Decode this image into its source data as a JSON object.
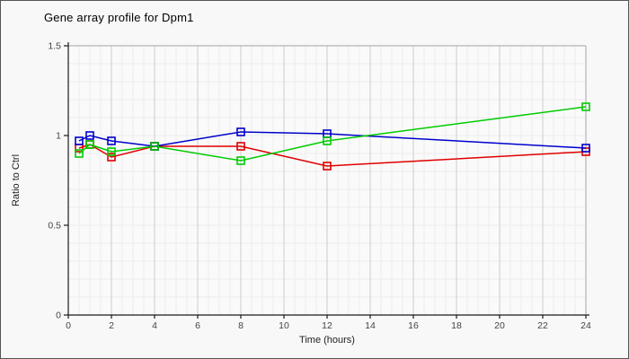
{
  "window": {
    "background": "#f8f8f8",
    "border_color": "#555555"
  },
  "chart_data": {
    "type": "line",
    "title": "Gene array profile for Dpm1",
    "xlabel": "Time (hours)",
    "ylabel": "Ratio to Ctrl",
    "x": [
      0.5,
      1,
      2,
      4,
      8,
      12,
      24
    ],
    "series": [
      {
        "name": "red",
        "color": "#e00000",
        "values": [
          0.93,
          0.95,
          0.88,
          0.94,
          0.94,
          0.83,
          0.91
        ]
      },
      {
        "name": "blue",
        "color": "#0000cc",
        "values": [
          0.97,
          1.0,
          0.97,
          0.94,
          1.02,
          1.01,
          0.93
        ]
      },
      {
        "name": "green",
        "color": "#00cc00",
        "values": [
          0.9,
          0.95,
          0.91,
          0.94,
          0.86,
          0.97,
          1.16
        ]
      }
    ],
    "xlim": [
      0,
      24
    ],
    "ylim": [
      0,
      1.5
    ],
    "x_major_ticks": [
      0,
      2,
      4,
      6,
      8,
      10,
      12,
      14,
      16,
      18,
      20,
      22,
      24
    ],
    "x_tick_labels": [
      "0",
      "2",
      "4",
      "6",
      "8",
      "10",
      "12",
      "14",
      "16",
      "18",
      "20",
      "22",
      "24"
    ],
    "x_minor_step": 0.5,
    "y_ticks": [
      0,
      0.5,
      1,
      1.5
    ],
    "y_tick_labels": [
      "0",
      "0.5",
      "1",
      "1.5"
    ],
    "y_minor_step": 0.1,
    "grid": true,
    "legend": "none",
    "marker": "open-square"
  },
  "colors": {
    "grid_minor": "#ececec",
    "grid_major": "#cccccc",
    "plot_frame": "#b3b3b3",
    "axis": "#1a1a1a",
    "tick_text": "#444444",
    "title_text": "#000000",
    "plot_background": "#fafafa"
  }
}
